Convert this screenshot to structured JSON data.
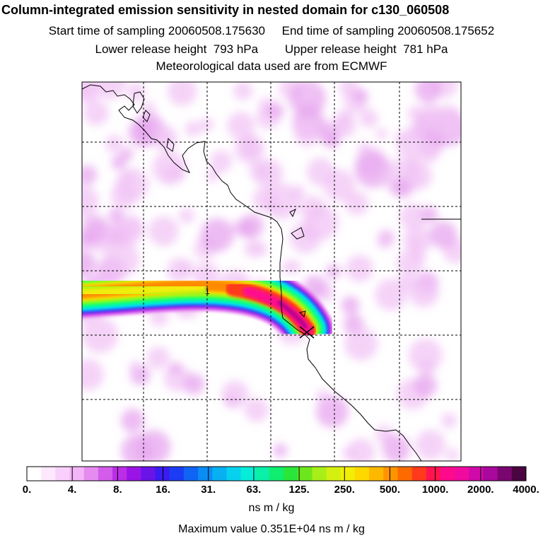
{
  "header": {
    "title": "Column-integrated emission sensitivity in nested domain for c130_060508",
    "sampling": "Start time of sampling 20060508.175630     End time of sampling 20060508.175652",
    "release": "Lower release height  793 hPa        Upper release height  781 hPa",
    "met": "Meteorological data used are from ECMWF"
  },
  "colorbar": {
    "labels": [
      "0.",
      "4.",
      "8.",
      "16.",
      "31.",
      "63.",
      "125.",
      "250.",
      "500.",
      "1000.",
      "2000.",
      "4000."
    ],
    "units": "ns m / kg",
    "colors": [
      "#ffffff",
      "#fde8fd",
      "#f9d0fb",
      "#f3b5f7",
      "#e68cf0",
      "#d35cea",
      "#bb2ee6",
      "#9b14e6",
      "#6a14e8",
      "#3a1cf0",
      "#1c3cf4",
      "#1064f4",
      "#0a8cf4",
      "#08b0f2",
      "#06d2ee",
      "#06ecd8",
      "#0af0a8",
      "#10ee70",
      "#2ae63a",
      "#6ee61e",
      "#a8ee18",
      "#d4f010",
      "#f2ee08",
      "#ffd800",
      "#ffb800",
      "#ff9400",
      "#ff6a00",
      "#ff3a1c",
      "#ff1450",
      "#ff0a8c",
      "#f00aa0",
      "#d00aa8",
      "#a8089c",
      "#7a0670",
      "#4a0440"
    ]
  },
  "max_value": "Maximum value  0.351E+04 ns m / kg",
  "map": {
    "grid": "dashed",
    "release_marker": "x-marker",
    "plume_colors": [
      "#00f0ff",
      "#00ff8c",
      "#7dff20",
      "#e8ff00",
      "#ffe000",
      "#ffa800",
      "#ff6a00",
      "#ff2840",
      "#ff0aa0",
      "#b4008c"
    ],
    "background_sensitivity_color": "#f2c4f6"
  }
}
